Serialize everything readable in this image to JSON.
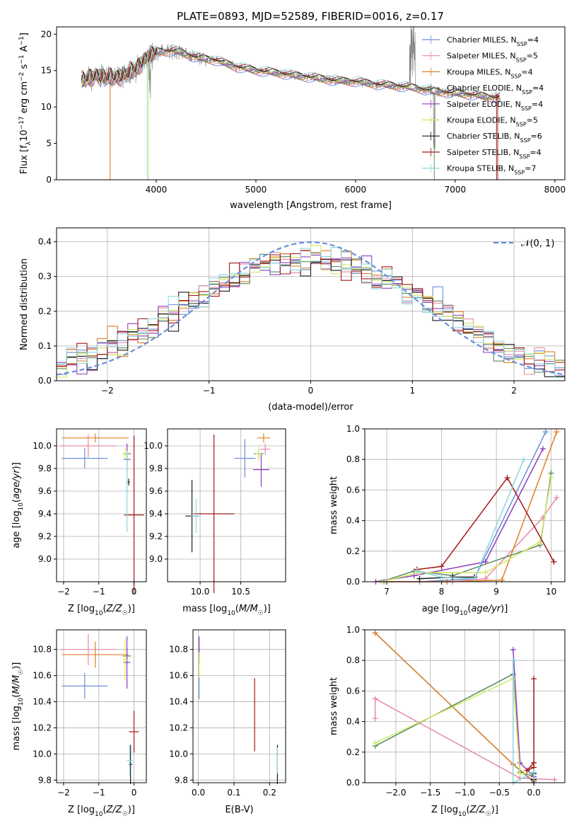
{
  "figure": {
    "title": "PLATE=0893, MJD=52589, FIBERID=0016, z=0.17"
  },
  "colors": {
    "Chabrier MILES": "#6c8fd9",
    "Salpeter MILES": "#e88aa8",
    "Kroupa MILES": "#e07f24",
    "Chabrier ELODIE": "#5b8a5f",
    "Salpeter ELODIE": "#8f3fbf",
    "Kroupa ELODIE": "#cfe860",
    "Chabrier STELIB": "#1a1a1a",
    "Salpeter STELIB": "#a01818",
    "Kroupa STELIB": "#8fd6dc",
    "data": "#808080"
  },
  "chart_data": [
    {
      "id": "spectrum",
      "type": "line",
      "title": "PLATE=0893, MJD=52589, FIBERID=0016, z=0.17",
      "xlabel": "wavelength [Angstrom, rest frame]",
      "ylabel": "Flux [f_λ 10^-17 erg cm^-2 s^-1 A^-1]",
      "xlim": [
        3000,
        8100
      ],
      "ylim": [
        0,
        21
      ],
      "xticks": [
        "4000",
        "5000",
        "6000",
        "7000",
        "8000"
      ],
      "yticks": [
        "0",
        "5",
        "10",
        "15",
        "20"
      ],
      "grid": false,
      "legend_position": "upper right",
      "legend": [
        {
          "name": "Chabrier MILES",
          "nssp": "4"
        },
        {
          "name": "Salpeter MILES",
          "nssp": "5"
        },
        {
          "name": "Kroupa MILES",
          "nssp": "4"
        },
        {
          "name": "Chabrier ELODIE",
          "nssp": "4"
        },
        {
          "name": "Salpeter ELODIE",
          "nssp": "4"
        },
        {
          "name": "Kroupa ELODIE",
          "nssp": "5"
        },
        {
          "name": "Chabrier STELIB",
          "nssp": "6"
        },
        {
          "name": "Salpeter STELIB",
          "nssp": "4"
        },
        {
          "name": "Kroupa STELIB",
          "nssp": "7"
        }
      ],
      "continuum": {
        "x": [
          3250,
          3400,
          3600,
          3800,
          3900,
          4000,
          4200,
          4400,
          4600,
          4800,
          5000,
          5200,
          5400,
          5600,
          5800,
          6000,
          6200,
          6400,
          6600,
          6800,
          7000,
          7200,
          7400
        ],
        "y": [
          13.6,
          14.3,
          14.0,
          15.2,
          16.8,
          17.6,
          17.7,
          16.8,
          16.4,
          15.5,
          15.0,
          14.7,
          14.3,
          14.0,
          13.6,
          13.5,
          13.1,
          12.9,
          12.6,
          12.1,
          11.9,
          11.6,
          11.3
        ]
      },
      "data_x_range": [
        3250,
        7450
      ],
      "model_cutoffs": {
        "Kroupa MILES": 3540,
        "Salpeter MILES": 3540,
        "Kroupa ELODIE": 3920,
        "Kroupa STELIB": 3910,
        "Chabrier ELODIE": 6790,
        "Salpeter STELIB": 7420
      }
    },
    {
      "id": "residuals",
      "type": "histogram",
      "xlabel": "(data-model)/error",
      "ylabel": "Normed distribution",
      "xlim": [
        -2.5,
        2.5
      ],
      "ylim": [
        0,
        0.44
      ],
      "xticks": [
        "−2",
        "−1",
        "0",
        "1",
        "2"
      ],
      "yticks": [
        "0.0",
        "0.1",
        "0.2",
        "0.3",
        "0.4"
      ],
      "grid": true,
      "legend_position": "upper right",
      "reference_label": "𝒩(0, 1)",
      "bin_width": 0.1,
      "bins_count": 50,
      "series_envelope": {
        "x": [
          -2.5,
          -2.0,
          -1.5,
          -1.0,
          -0.5,
          0.0,
          0.5,
          1.0,
          1.5,
          2.0,
          2.5
        ],
        "y": [
          0.04,
          0.09,
          0.17,
          0.26,
          0.34,
          0.35,
          0.33,
          0.25,
          0.16,
          0.08,
          0.03
        ]
      }
    },
    {
      "id": "age_vs_Z",
      "type": "errorbar",
      "xlabel": "Z [log10(Z/Z☉)]",
      "ylabel": "age [log10(age/yr)]",
      "xlim": [
        -2.2,
        0.35
      ],
      "ylim": [
        8.8,
        10.15
      ],
      "xticks": [
        "−2",
        "−1",
        "0"
      ],
      "yticks": [
        "9.0",
        "9.2",
        "9.4",
        "9.6",
        "9.8",
        "10.0"
      ],
      "grid": true,
      "points": [
        {
          "series": "Chabrier MILES",
          "x": -1.4,
          "xerr": 0.65,
          "y": 9.89,
          "yerr": 0.09
        },
        {
          "series": "Salpeter MILES",
          "x": -1.3,
          "xerr": 0.8,
          "y": 10.0,
          "yerr": 0.1
        },
        {
          "series": "Kroupa MILES",
          "x": -1.1,
          "xerr": 0.95,
          "y": 10.07,
          "yerr": 0.04
        },
        {
          "series": "Chabrier ELODIE",
          "x": -0.2,
          "xerr": 0.12,
          "y": 9.93,
          "yerr": 0.07
        },
        {
          "series": "Salpeter ELODIE",
          "x": -0.2,
          "xerr": 0.1,
          "y": 9.88,
          "yerr": 0.14
        },
        {
          "series": "Kroupa ELODIE",
          "x": -0.25,
          "xerr": 0.08,
          "y": 9.93,
          "yerr": 0.05
        },
        {
          "series": "Chabrier STELIB",
          "x": -0.15,
          "xerr": 0.03,
          "y": 9.68,
          "yerr": 0.03
        },
        {
          "series": "Salpeter STELIB",
          "x": 0.0,
          "xerr": 0.28,
          "y": 9.39,
          "yerr": 0.7
        },
        {
          "series": "Kroupa STELIB",
          "x": -0.2,
          "xerr": 0.05,
          "y": 9.6,
          "yerr": 0.36
        }
      ]
    },
    {
      "id": "age_vs_mass",
      "type": "errorbar",
      "xlabel": "mass [log10(M/M☉)]",
      "ylabel": "",
      "xlim": [
        9.6,
        11.05
      ],
      "ylim": [
        8.8,
        10.15
      ],
      "xticks": [
        "10.0",
        "10.5"
      ],
      "yticks": [
        "9.0",
        "9.2",
        "9.4",
        "9.6",
        "9.8",
        "10.0"
      ],
      "grid": true,
      "points": [
        {
          "series": "Chabrier MILES",
          "x": 10.55,
          "xerr": 0.13,
          "y": 9.89,
          "yerr": 0.17
        },
        {
          "series": "Salpeter MILES",
          "x": 10.8,
          "xerr": 0.06,
          "y": 9.97,
          "yerr": 0.05
        },
        {
          "series": "Kroupa MILES",
          "x": 10.78,
          "xerr": 0.08,
          "y": 10.07,
          "yerr": 0.04
        },
        {
          "series": "Chabrier ELODIE",
          "x": 10.72,
          "xerr": 0.06,
          "y": 9.93,
          "yerr": 0.04
        },
        {
          "series": "Salpeter ELODIE",
          "x": 10.75,
          "xerr": 0.1,
          "y": 9.79,
          "yerr": 0.15
        },
        {
          "series": "Kroupa ELODIE",
          "x": 10.72,
          "xerr": 0.04,
          "y": 9.93,
          "yerr": 0.06
        },
        {
          "series": "Chabrier STELIB",
          "x": 9.9,
          "xerr": 0.08,
          "y": 9.38,
          "yerr": 0.32
        },
        {
          "series": "Salpeter STELIB",
          "x": 10.17,
          "xerr": 0.25,
          "y": 9.4,
          "yerr": 0.7
        },
        {
          "series": "Kroupa STELIB",
          "x": 9.95,
          "xerr": 0.06,
          "y": 9.38,
          "yerr": 0.15
        }
      ]
    },
    {
      "id": "weight_vs_age",
      "type": "line",
      "xlabel": "age [log10(age/yr)]",
      "ylabel": "mass weight",
      "xlim": [
        6.6,
        10.25
      ],
      "ylim": [
        0,
        1.0
      ],
      "xticks": [
        "7",
        "8",
        "9",
        "10"
      ],
      "yticks": [
        "0.0",
        "0.2",
        "0.4",
        "0.6",
        "0.8",
        "1.0"
      ],
      "grid": true,
      "series": [
        {
          "name": "Chabrier MILES",
          "x": [
            6.95,
            7.6,
            8.6,
            9.9
          ],
          "y": [
            0.0,
            0.0,
            0.02,
            0.98
          ]
        },
        {
          "name": "Salpeter MILES",
          "x": [
            6.9,
            8.2,
            8.8,
            9.85,
            10.1
          ],
          "y": [
            0.0,
            0.0,
            0.02,
            0.42,
            0.55
          ]
        },
        {
          "name": "Kroupa MILES",
          "x": [
            6.9,
            8.1,
            9.1,
            10.1
          ],
          "y": [
            0.0,
            0.0,
            0.01,
            0.98
          ]
        },
        {
          "name": "Chabrier ELODIE",
          "x": [
            6.9,
            7.5,
            8.2,
            9.8,
            10.0
          ],
          "y": [
            0.0,
            0.07,
            0.04,
            0.24,
            0.71
          ]
        },
        {
          "name": "Salpeter ELODIE",
          "x": [
            6.8,
            7.5,
            8.8,
            9.85
          ],
          "y": [
            0.0,
            0.04,
            0.13,
            0.87
          ]
        },
        {
          "name": "Kroupa ELODIE",
          "x": [
            6.9,
            7.6,
            8.8,
            9.8,
            10.0
          ],
          "y": [
            0.0,
            0.06,
            0.06,
            0.26,
            0.68
          ]
        },
        {
          "name": "Chabrier STELIB",
          "x": [
            7.6,
            8.2,
            8.6
          ],
          "y": [
            0.02,
            0.03,
            0.03
          ]
        },
        {
          "name": "Salpeter STELIB",
          "x": [
            7.55,
            8.0,
            9.2,
            10.05
          ],
          "y": [
            0.08,
            0.1,
            0.68,
            0.13
          ]
        },
        {
          "name": "Kroupa STELIB",
          "x": [
            7.55,
            8.0,
            8.6,
            9.5
          ],
          "y": [
            0.07,
            0.03,
            0.02,
            0.8
          ]
        }
      ]
    },
    {
      "id": "mass_vs_Z",
      "type": "errorbar",
      "xlabel": "Z [log10(Z/Z☉)]",
      "ylabel": "mass [log10(M/M☉)]",
      "xlim": [
        -2.2,
        0.35
      ],
      "ylim": [
        9.78,
        10.95
      ],
      "xticks": [
        "−2",
        "−1",
        "0"
      ],
      "yticks": [
        "9.8",
        "10.0",
        "10.2",
        "10.4",
        "10.6",
        "10.8"
      ],
      "grid": true,
      "points": [
        {
          "series": "Chabrier MILES",
          "x": -1.4,
          "xerr": 0.65,
          "y": 10.52,
          "yerr": 0.1
        },
        {
          "series": "Salpeter MILES",
          "x": -1.3,
          "xerr": 0.8,
          "y": 10.8,
          "yerr": 0.12
        },
        {
          "series": "Kroupa MILES",
          "x": -1.1,
          "xerr": 0.95,
          "y": 10.76,
          "yerr": 0.1
        },
        {
          "series": "Chabrier ELODIE",
          "x": -0.2,
          "xerr": 0.12,
          "y": 10.75,
          "yerr": 0.06
        },
        {
          "series": "Salpeter ELODIE",
          "x": -0.2,
          "xerr": 0.1,
          "y": 10.7,
          "yerr": 0.2
        },
        {
          "series": "Kroupa ELODIE",
          "x": -0.25,
          "xerr": 0.06,
          "y": 10.72,
          "yerr": 0.16
        },
        {
          "series": "Chabrier STELIB",
          "x": -0.1,
          "xerr": 0.05,
          "y": 9.92,
          "yerr": 0.15
        },
        {
          "series": "Salpeter STELIB",
          "x": 0.0,
          "xerr": 0.14,
          "y": 10.17,
          "yerr": 0.16
        },
        {
          "series": "Kroupa STELIB",
          "x": -0.12,
          "xerr": 0.08,
          "y": 9.95,
          "yerr": 0.12
        }
      ]
    },
    {
      "id": "mass_vs_ebv",
      "type": "errorbar",
      "xlabel": "E(B-V)",
      "ylabel": "",
      "xlim": [
        -0.015,
        0.245
      ],
      "ylim": [
        9.78,
        10.95
      ],
      "xticks": [
        "0.0",
        "0.1",
        "0.2"
      ],
      "yticks": [
        "9.8",
        "10.0",
        "10.2",
        "10.4",
        "10.6",
        "10.8"
      ],
      "grid": true,
      "points": [
        {
          "series": "Chabrier MILES",
          "x": 0.002,
          "xerr": 0.0,
          "y": 10.52,
          "yerr": 0.1
        },
        {
          "series": "Salpeter MILES",
          "x": 0.002,
          "xerr": 0.0,
          "y": 10.8,
          "yerr": 0.1
        },
        {
          "series": "Kroupa MILES",
          "x": 0.002,
          "xerr": 0.0,
          "y": 10.76,
          "yerr": 0.08
        },
        {
          "series": "Chabrier ELODIE",
          "x": 0.002,
          "xerr": 0.0,
          "y": 10.75,
          "yerr": 0.05
        },
        {
          "series": "Salpeter ELODIE",
          "x": 0.002,
          "xerr": 0.0,
          "y": 10.8,
          "yerr": 0.1
        },
        {
          "series": "Kroupa ELODIE",
          "x": 0.002,
          "xerr": 0.0,
          "y": 10.68,
          "yerr": 0.1
        },
        {
          "series": "Chabrier STELIB",
          "x": 0.222,
          "xerr": 0.0,
          "y": 9.92,
          "yerr": 0.15
        },
        {
          "series": "Salpeter STELIB",
          "x": 0.158,
          "xerr": 0.0,
          "y": 10.3,
          "yerr": 0.28
        },
        {
          "series": "Kroupa STELIB",
          "x": 0.222,
          "xerr": 0.0,
          "y": 9.95,
          "yerr": 0.1
        }
      ]
    },
    {
      "id": "weight_vs_Z",
      "type": "line",
      "xlabel": "Z [log10(Z/Z☉)]",
      "ylabel": "mass weight",
      "xlim": [
        -2.45,
        0.45
      ],
      "ylim": [
        0,
        1.0
      ],
      "xticks": [
        "−2.0",
        "−1.5",
        "−1.0",
        "−0.5",
        "0.0"
      ],
      "yticks": [
        "0.0",
        "0.2",
        "0.4",
        "0.6",
        "0.8",
        "1.0"
      ],
      "grid": true,
      "series": [
        {
          "name": "Chabrier MILES",
          "x": [
            -2.3,
            -0.3,
            0.0
          ],
          "y": [
            0.98,
            0.12,
            0.0
          ]
        },
        {
          "name": "Salpeter MILES",
          "x": [
            -2.3,
            -2.3,
            -0.2,
            0.3
          ],
          "y": [
            0.42,
            0.55,
            0.03,
            0.02
          ]
        },
        {
          "name": "Kroupa MILES",
          "x": [
            -2.3,
            -0.3,
            0.0
          ],
          "y": [
            0.98,
            0.12,
            0.01
          ]
        },
        {
          "name": "Chabrier ELODIE",
          "x": [
            -2.3,
            -0.3,
            -0.2,
            0.0
          ],
          "y": [
            0.24,
            0.71,
            0.07,
            0.04
          ]
        },
        {
          "name": "Salpeter ELODIE",
          "x": [
            -0.3,
            -0.2,
            0.0
          ],
          "y": [
            0.87,
            0.13,
            0.04
          ]
        },
        {
          "name": "Kroupa ELODIE",
          "x": [
            -2.3,
            -0.3,
            -0.2,
            0.0
          ],
          "y": [
            0.26,
            0.68,
            0.06,
            0.06
          ]
        },
        {
          "name": "Chabrier STELIB",
          "x": [
            0.0,
            0.0
          ],
          "y": [
            0.02,
            0.06
          ]
        },
        {
          "name": "Salpeter STELIB",
          "x": [
            0.0,
            0.0,
            -0.1,
            0.0
          ],
          "y": [
            0.68,
            0.1,
            0.08,
            0.13
          ]
        },
        {
          "name": "Kroupa STELIB",
          "x": [
            -0.3,
            -0.3,
            0.0,
            0.0
          ],
          "y": [
            0.8,
            0.0,
            0.07,
            0.03
          ]
        }
      ]
    }
  ]
}
